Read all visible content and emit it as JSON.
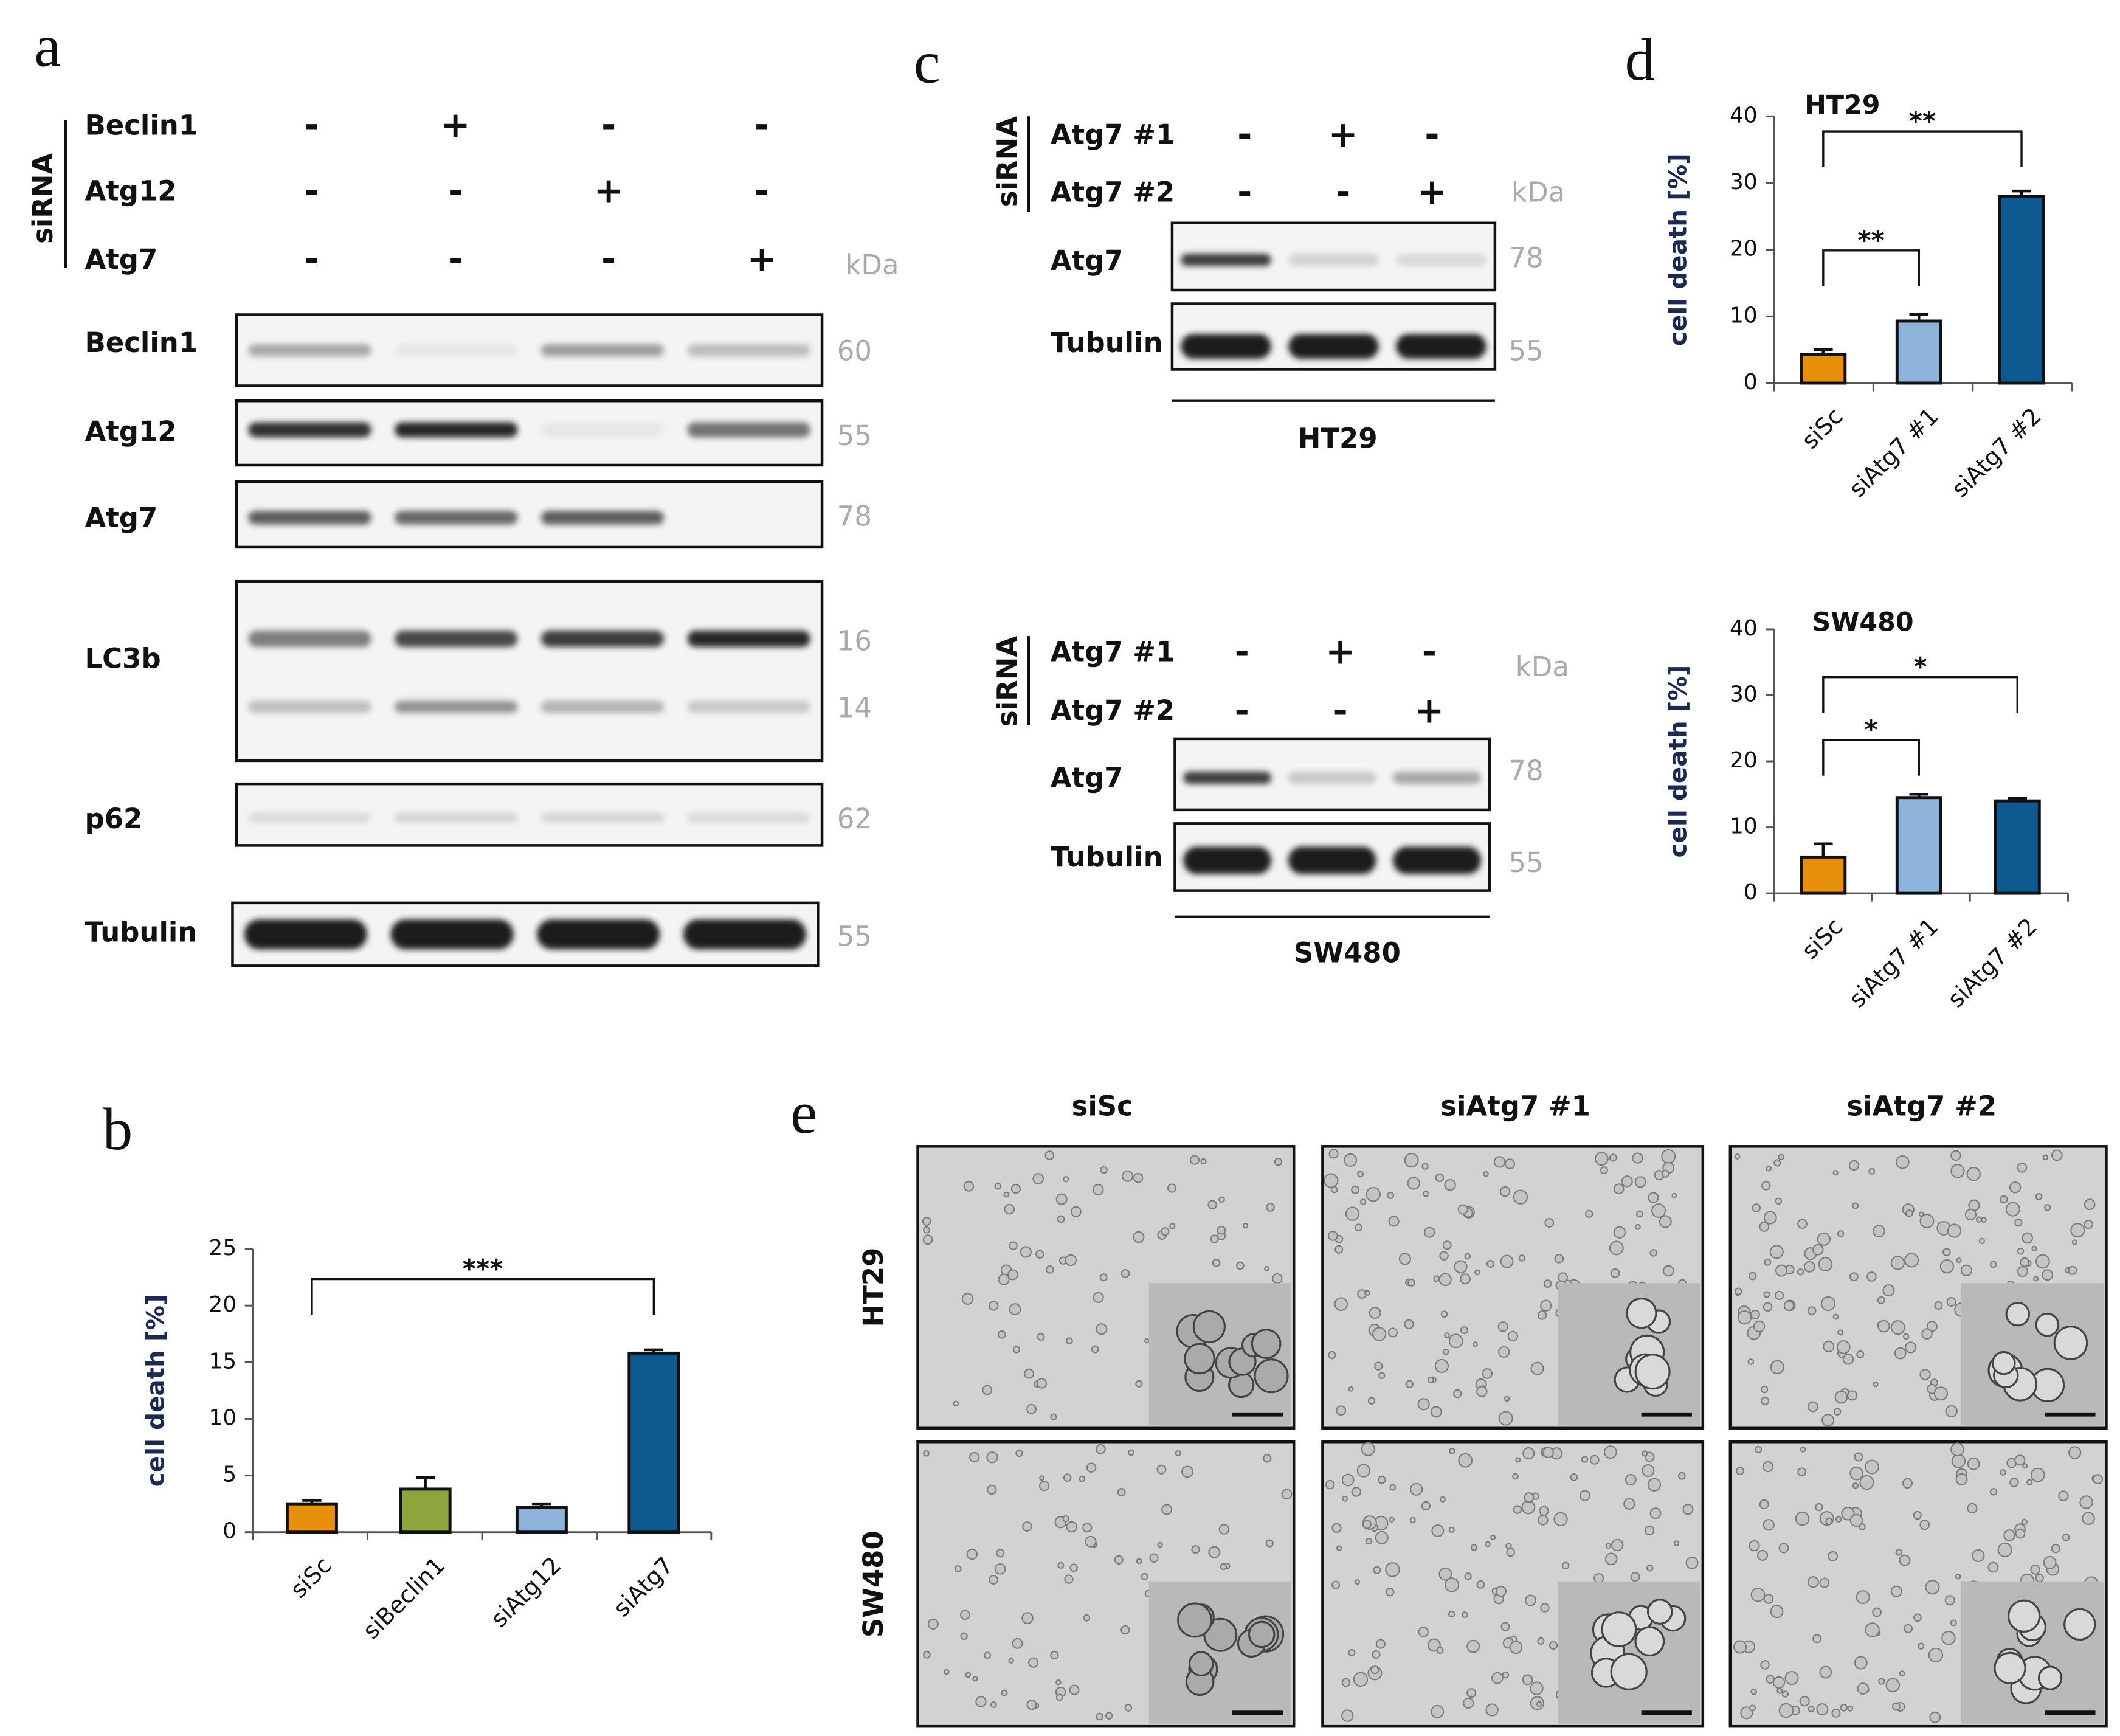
{
  "panel_labels": [
    "a",
    "b",
    "c",
    "d",
    "e"
  ],
  "panel_a": {
    "group_label": "siRNA",
    "kda_label": "kDa",
    "conditions": [
      {
        "name": "Beclin1",
        "signs": [
          "-",
          "+",
          "-",
          "-"
        ]
      },
      {
        "name": "Atg12",
        "signs": [
          "-",
          "-",
          "+",
          "-"
        ]
      },
      {
        "name": "Atg7",
        "signs": [
          "-",
          "-",
          "-",
          "+"
        ]
      }
    ],
    "blots": [
      {
        "name": "Beclin1",
        "kda": [
          60
        ]
      },
      {
        "name": "Atg12",
        "kda": [
          55
        ]
      },
      {
        "name": "Atg7",
        "kda": [
          78
        ]
      },
      {
        "name": "LC3b",
        "kda": [
          16,
          14
        ]
      },
      {
        "name": "p62",
        "kda": [
          62
        ]
      },
      {
        "name": "Tubulin",
        "kda": [
          55
        ]
      }
    ]
  },
  "panel_c": {
    "blocks": [
      {
        "group_label": "siRNA",
        "kda_label": "kDa",
        "conditions": [
          {
            "name": "Atg7 #1",
            "signs": [
              "-",
              "+",
              "-"
            ]
          },
          {
            "name": "Atg7 #2",
            "signs": [
              "-",
              "-",
              "+"
            ]
          }
        ],
        "blots": [
          {
            "name": "Atg7",
            "kda": [
              78
            ]
          },
          {
            "name": "Tubulin",
            "kda": [
              55
            ]
          }
        ],
        "cell_line": "HT29"
      },
      {
        "group_label": "siRNA",
        "kda_label": "kDa",
        "conditions": [
          {
            "name": "Atg7 #1",
            "signs": [
              "-",
              "+",
              "-"
            ]
          },
          {
            "name": "Atg7 #2",
            "signs": [
              "-",
              "-",
              "+"
            ]
          }
        ],
        "blots": [
          {
            "name": "Atg7",
            "kda": [
              78
            ]
          },
          {
            "name": "Tubulin",
            "kda": [
              55
            ]
          }
        ],
        "cell_line": "SW480"
      }
    ]
  },
  "chart_data": [
    {
      "type": "bar",
      "ylabel": "cell death [%]",
      "categories": [
        "siSc",
        "siBeclin1",
        "siAtg12",
        "siAtg7"
      ],
      "values": [
        2.5,
        3.8,
        2.2,
        15.8
      ],
      "errors": [
        0.3,
        1.0,
        0.3,
        0.3
      ],
      "colors": [
        "#e8900c",
        "#8ea43c",
        "#8fb4dc",
        "#0d5a91"
      ],
      "ylim": [
        0,
        25
      ],
      "yticks": [
        0,
        5,
        10,
        15,
        20,
        25
      ],
      "significance": [
        {
          "pair": [
            "siSc",
            "siAtg7"
          ],
          "label": "***"
        }
      ]
    },
    {
      "type": "bar",
      "title": "HT29",
      "ylabel": "cell death [%]",
      "categories": [
        "siSc",
        "siAtg7 #1",
        "siAtg7 #2"
      ],
      "values": [
        4.3,
        9.3,
        28
      ],
      "errors": [
        0.7,
        1.0,
        0.8
      ],
      "colors": [
        "#e8900c",
        "#8fb4dc",
        "#0d5a91"
      ],
      "ylim": [
        0,
        40
      ],
      "yticks": [
        0,
        10,
        20,
        30,
        40
      ],
      "significance": [
        {
          "pair": [
            "siSc",
            "siAtg7 #1"
          ],
          "label": "**"
        },
        {
          "pair": [
            "siSc",
            "siAtg7 #2"
          ],
          "label": "**"
        }
      ]
    },
    {
      "type": "bar",
      "title": "SW480",
      "ylabel": "cell death [%]",
      "categories": [
        "siSc",
        "siAtg7 #1",
        "siAtg7 #2"
      ],
      "values": [
        5.5,
        14.5,
        14
      ],
      "errors": [
        2.0,
        0.5,
        0.4
      ],
      "colors": [
        "#e8900c",
        "#8fb4dc",
        "#0d5a91"
      ],
      "ylim": [
        0,
        40
      ],
      "yticks": [
        0,
        10,
        20,
        30,
        40
      ],
      "significance": [
        {
          "pair": [
            "siSc",
            "siAtg7 #1"
          ],
          "label": "*"
        },
        {
          "pair": [
            "siSc",
            "siAtg7 #2"
          ],
          "label": "*"
        }
      ]
    }
  ],
  "panel_e": {
    "columns": [
      "siSc",
      "siAtg7 #1",
      "siAtg7 #2"
    ],
    "rows": [
      "HT29",
      "SW480"
    ]
  }
}
